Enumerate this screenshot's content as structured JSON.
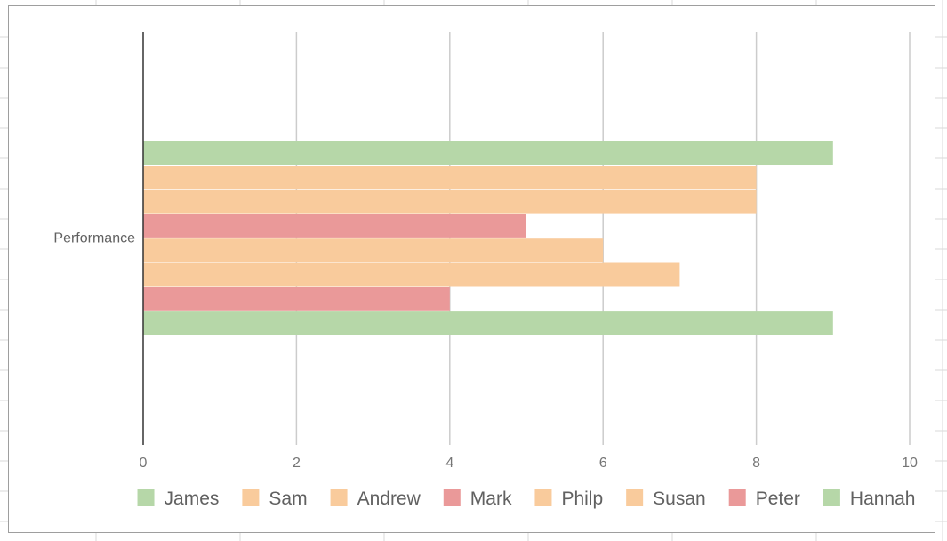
{
  "colors": {
    "green": "#b6d7a8",
    "orange": "#f9cb9c",
    "red": "#ea9999",
    "gridline": "#cccccc",
    "axis": "#333333",
    "sheet_grid": "#dadada"
  },
  "chart_data": {
    "type": "bar",
    "orientation": "horizontal",
    "categories": [
      "Performance"
    ],
    "series": [
      {
        "name": "James",
        "values": [
          9
        ],
        "color": "#b6d7a8"
      },
      {
        "name": "Sam",
        "values": [
          8
        ],
        "color": "#f9cb9c"
      },
      {
        "name": "Andrew",
        "values": [
          8
        ],
        "color": "#f9cb9c"
      },
      {
        "name": "Mark",
        "values": [
          5
        ],
        "color": "#ea9999"
      },
      {
        "name": "Philp",
        "values": [
          6
        ],
        "color": "#f9cb9c"
      },
      {
        "name": "Susan",
        "values": [
          7
        ],
        "color": "#f9cb9c"
      },
      {
        "name": "Peter",
        "values": [
          4
        ],
        "color": "#ea9999"
      },
      {
        "name": "Hannah",
        "values": [
          9
        ],
        "color": "#b6d7a8"
      }
    ],
    "x_ticks": [
      "0",
      "2",
      "4",
      "6",
      "8",
      "10"
    ],
    "xlim": [
      0,
      10
    ],
    "title": "",
    "xlabel": "",
    "ylabel": "",
    "grid": "vertical",
    "legend_position": "bottom"
  }
}
